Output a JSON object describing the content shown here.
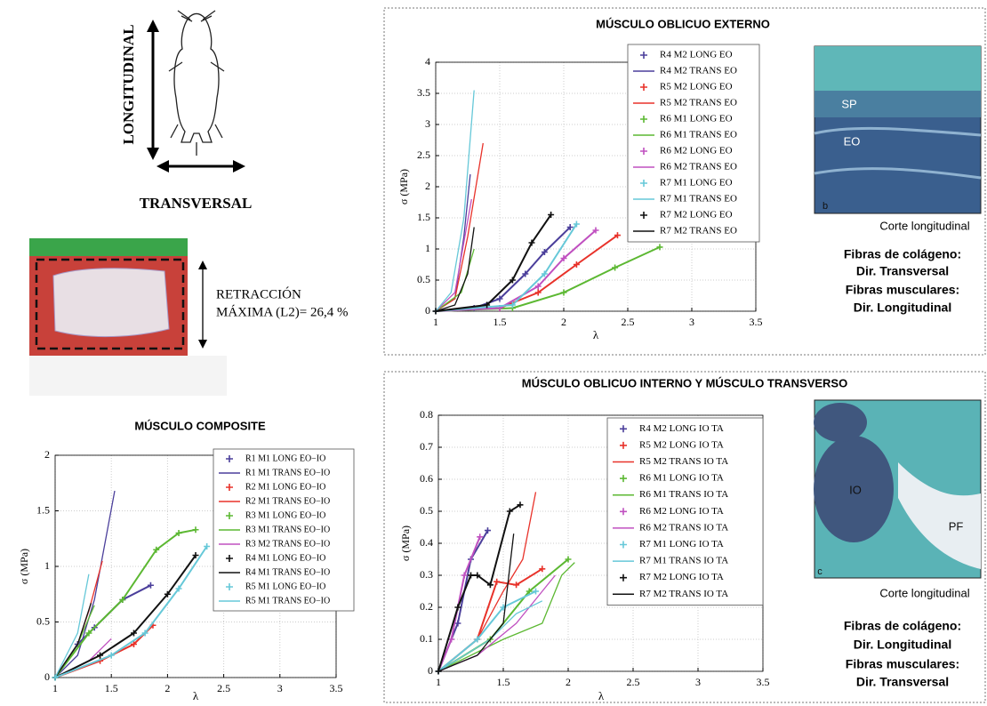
{
  "chart_data": [
    {
      "type": "line",
      "title": "MÚSCULO OBLICUO EXTERNO",
      "x_label": "λ",
      "y_label": "σ (MPa)",
      "xlim": [
        1,
        3.5
      ],
      "xticks": [
        1,
        1.5,
        2,
        2.5,
        3,
        3.5
      ],
      "ylim": [
        0,
        4
      ],
      "yticks": [
        0,
        0.5,
        1,
        1.5,
        2,
        2.5,
        3,
        3.5,
        4
      ],
      "grid": true,
      "series": [
        {
          "name": "R4 M2 LONG EO",
          "color": "#4b3f9b",
          "marker": "+",
          "x": [
            1,
            1.3,
            1.5,
            1.7,
            1.85,
            2.05
          ],
          "values": [
            0,
            0.05,
            0.2,
            0.6,
            0.95,
            1.35
          ]
        },
        {
          "name": "R4 M2 TRANS EO",
          "color": "#4b3f9b",
          "x": [
            1,
            1.15,
            1.22,
            1.27
          ],
          "values": [
            0,
            0.2,
            1.2,
            2.2
          ]
        },
        {
          "name": "R5 M2 LONG EO",
          "color": "#e8322a",
          "marker": "+",
          "x": [
            1,
            1.5,
            1.8,
            2.1,
            2.42
          ],
          "values": [
            0,
            0.05,
            0.3,
            0.75,
            1.22
          ]
        },
        {
          "name": "R5 M2 TRANS EO",
          "color": "#e8322a",
          "x": [
            1,
            1.15,
            1.25,
            1.37
          ],
          "values": [
            0,
            0.2,
            1.2,
            2.7
          ]
        },
        {
          "name": "R6 M1 LONG EO",
          "color": "#5cb832",
          "marker": "+",
          "x": [
            1,
            1.6,
            2,
            2.4,
            2.75
          ],
          "values": [
            0,
            0.05,
            0.3,
            0.7,
            1.03
          ]
        },
        {
          "name": "R6 M1 TRANS EO",
          "color": "#5cb832",
          "x": [
            1,
            1.2,
            1.3
          ],
          "values": [
            0,
            0.3,
            1
          ]
        },
        {
          "name": "R6 M2 LONG EO",
          "color": "#c050c0",
          "marker": "+",
          "x": [
            1,
            1.5,
            1.8,
            2,
            2.25
          ],
          "values": [
            0,
            0.05,
            0.4,
            0.85,
            1.3
          ]
        },
        {
          "name": "R6 M2 TRANS EO",
          "color": "#c050c0",
          "x": [
            1,
            1.15,
            1.28
          ],
          "values": [
            0,
            0.3,
            1.8
          ]
        },
        {
          "name": "R7 M1 LONG EO",
          "color": "#66c8d8",
          "marker": "+",
          "x": [
            1,
            1.6,
            1.85,
            2.1
          ],
          "values": [
            0,
            0.1,
            0.6,
            1.4
          ]
        },
        {
          "name": "R7 M1 TRANS EO",
          "color": "#66c8d8",
          "x": [
            1,
            1.12,
            1.22,
            1.3
          ],
          "values": [
            0,
            0.3,
            1.5,
            3.55
          ]
        },
        {
          "name": "R7 M2 LONG EO",
          "color": "#111111",
          "marker": "+",
          "x": [
            1,
            1.4,
            1.6,
            1.75,
            1.9
          ],
          "values": [
            0,
            0.1,
            0.5,
            1.1,
            1.55
          ]
        },
        {
          "name": "R7 M2 TRANS EO",
          "color": "#111111",
          "x": [
            1,
            1.15,
            1.25,
            1.3
          ],
          "values": [
            0,
            0.1,
            0.6,
            1.35
          ]
        }
      ]
    },
    {
      "type": "line",
      "title": "MÚSCULO OBLICUO INTERNO Y MÚSCULO TRANSVERSO",
      "x_label": "λ",
      "y_label": "σ (MPa)",
      "xlim": [
        1,
        3.5
      ],
      "xticks": [
        1,
        1.5,
        2,
        2.5,
        3,
        3.5
      ],
      "ylim": [
        0,
        0.8
      ],
      "yticks": [
        0,
        0.1,
        0.2,
        0.3,
        0.4,
        0.5,
        0.6,
        0.7,
        0.8
      ],
      "grid": true,
      "series": [
        {
          "name": "R4 M2 LONG IO TA",
          "color": "#4b3f9b",
          "marker": "+",
          "x": [
            1,
            1.15,
            1.25,
            1.38
          ],
          "values": [
            0,
            0.15,
            0.35,
            0.44
          ]
        },
        {
          "name": "R5 M2 LONG IO TA",
          "color": "#e8322a",
          "marker": "+",
          "x": [
            1,
            1.3,
            1.45,
            1.6,
            1.8
          ],
          "values": [
            0,
            0.1,
            0.28,
            0.27,
            0.32
          ]
        },
        {
          "name": "R5 M2 TRANS IO TA",
          "color": "#e8322a",
          "x": [
            1,
            1.3,
            1.5,
            1.65,
            1.75
          ],
          "values": [
            0,
            0.1,
            0.25,
            0.35,
            0.56
          ]
        },
        {
          "name": "R6 M1 LONG IO TA",
          "color": "#5cb832",
          "marker": "+",
          "x": [
            1,
            1.4,
            1.7,
            2
          ],
          "values": [
            0,
            0.1,
            0.25,
            0.35
          ]
        },
        {
          "name": "R6 M1 TRANS IO TA",
          "color": "#5cb832",
          "x": [
            1,
            1.5,
            1.8,
            1.95,
            2.05
          ],
          "values": [
            0,
            0.1,
            0.15,
            0.3,
            0.34
          ]
        },
        {
          "name": "R6 M2 LONG IO TA",
          "color": "#c050c0",
          "marker": "+",
          "x": [
            1,
            1.1,
            1.2,
            1.32
          ],
          "values": [
            0,
            0.1,
            0.3,
            0.42
          ]
        },
        {
          "name": "R6 M2 TRANS IO TA",
          "color": "#c050c0",
          "x": [
            1,
            1.3,
            1.6,
            1.8,
            1.9
          ],
          "values": [
            0,
            0.05,
            0.15,
            0.25,
            0.3
          ]
        },
        {
          "name": "R7 M1 LONG IO TA",
          "color": "#66c8d8",
          "marker": "+",
          "x": [
            1,
            1.3,
            1.5,
            1.75
          ],
          "values": [
            0,
            0.1,
            0.2,
            0.25
          ]
        },
        {
          "name": "R7 M1 TRANS IO TA",
          "color": "#66c8d8",
          "x": [
            1,
            1.4,
            1.6,
            1.8
          ],
          "values": [
            0,
            0.1,
            0.18,
            0.22
          ]
        },
        {
          "name": "R7 M2 LONG IO TA",
          "color": "#111111",
          "marker": "+",
          "x": [
            1,
            1.15,
            1.25,
            1.3,
            1.4,
            1.55,
            1.63
          ],
          "values": [
            0,
            0.2,
            0.3,
            0.3,
            0.27,
            0.5,
            0.52
          ]
        },
        {
          "name": "R7 M2 TRANS IO TA",
          "color": "#111111",
          "x": [
            1,
            1.3,
            1.5,
            1.58
          ],
          "values": [
            0,
            0.05,
            0.15,
            0.43
          ]
        }
      ]
    },
    {
      "type": "line",
      "title": "MÚSCULO COMPOSITE",
      "x_label": "λ",
      "y_label": "σ (MPa)",
      "xlim": [
        1,
        3.5
      ],
      "xticks": [
        1,
        1.5,
        2,
        2.5,
        3,
        3.5
      ],
      "ylim": [
        0,
        2
      ],
      "yticks": [
        0,
        0.5,
        1,
        1.5,
        2
      ],
      "grid": true,
      "series": [
        {
          "name": "R1 M1 LONG EO−IO",
          "color": "#4b3f9b",
          "marker": "+",
          "x": [
            1,
            1.2,
            1.35,
            1.6,
            1.85
          ],
          "values": [
            0,
            0.3,
            0.45,
            0.7,
            0.83
          ]
        },
        {
          "name": "R1 M1 TRANS EO−IO",
          "color": "#4b3f9b",
          "x": [
            1,
            1.2,
            1.35,
            1.53
          ],
          "values": [
            0,
            0.2,
            0.7,
            1.68
          ]
        },
        {
          "name": "R2 M1 LONG EO−IO",
          "color": "#e8322a",
          "marker": "+",
          "x": [
            1,
            1.4,
            1.7,
            1.87
          ],
          "values": [
            0,
            0.15,
            0.3,
            0.47
          ]
        },
        {
          "name": "R2 M1 TRANS EO−IO",
          "color": "#e8322a",
          "x": [
            1,
            1.2,
            1.3,
            1.42
          ],
          "values": [
            0,
            0.3,
            0.6,
            1.05
          ]
        },
        {
          "name": "R3 M1 LONG EO−IO",
          "color": "#5cb832",
          "marker": "+",
          "x": [
            1,
            1.3,
            1.6,
            1.9,
            2.1,
            2.25
          ],
          "values": [
            0,
            0.4,
            0.7,
            1.15,
            1.3,
            1.33
          ]
        },
        {
          "name": "R3 M1 TRANS EO−IO",
          "color": "#5cb832",
          "x": [
            1,
            1.2,
            1.35
          ],
          "values": [
            0,
            0.3,
            0.65
          ]
        },
        {
          "name": "R3 M2 TRANS EO−IO",
          "color": "#c050c0",
          "x": [
            1,
            1.3,
            1.5
          ],
          "values": [
            0,
            0.15,
            0.35
          ]
        },
        {
          "name": "R4 M1 LONG EO−IO",
          "color": "#111111",
          "marker": "+",
          "x": [
            1,
            1.4,
            1.7,
            2,
            2.25
          ],
          "values": [
            0,
            0.2,
            0.4,
            0.75,
            1.1
          ]
        },
        {
          "name": "R4 M1 TRANS EO−IO",
          "color": "#111111",
          "x": [
            1,
            1.2,
            1.32
          ],
          "values": [
            0,
            0.3,
            0.67
          ]
        },
        {
          "name": "R5 M1 LONG EO−IO",
          "color": "#66c8d8",
          "marker": "+",
          "x": [
            1,
            1.5,
            1.8,
            2.1,
            2.35
          ],
          "values": [
            0,
            0.2,
            0.4,
            0.8,
            1.18
          ]
        },
        {
          "name": "R5 M1 TRANS EO−IO",
          "color": "#66c8d8",
          "x": [
            1,
            1.2,
            1.3
          ],
          "values": [
            0,
            0.4,
            0.93
          ]
        }
      ]
    }
  ],
  "diagram": {
    "vertical_label": "LONGITUDINAL",
    "horizontal_label": "TRANSVERSAL",
    "retraction": [
      "RETRACCIÓN",
      "MÁXIMA (L2)= 26,4 %"
    ]
  },
  "images": [
    {
      "labels": [
        "SP",
        "EO",
        "b"
      ],
      "caption": "Corte longitudinal",
      "notes": [
        "Fibras de colágeno:",
        "Dir. Transversal",
        "Fibras musculares:",
        "Dir. Longitudinal"
      ]
    },
    {
      "labels": [
        "IO",
        "PF",
        "c"
      ],
      "caption": "Corte longitudinal",
      "notes": [
        "Fibras de colágeno:",
        "Dir. Longitudinal",
        "Fibras musculares:",
        "Dir. Transversal"
      ]
    }
  ]
}
